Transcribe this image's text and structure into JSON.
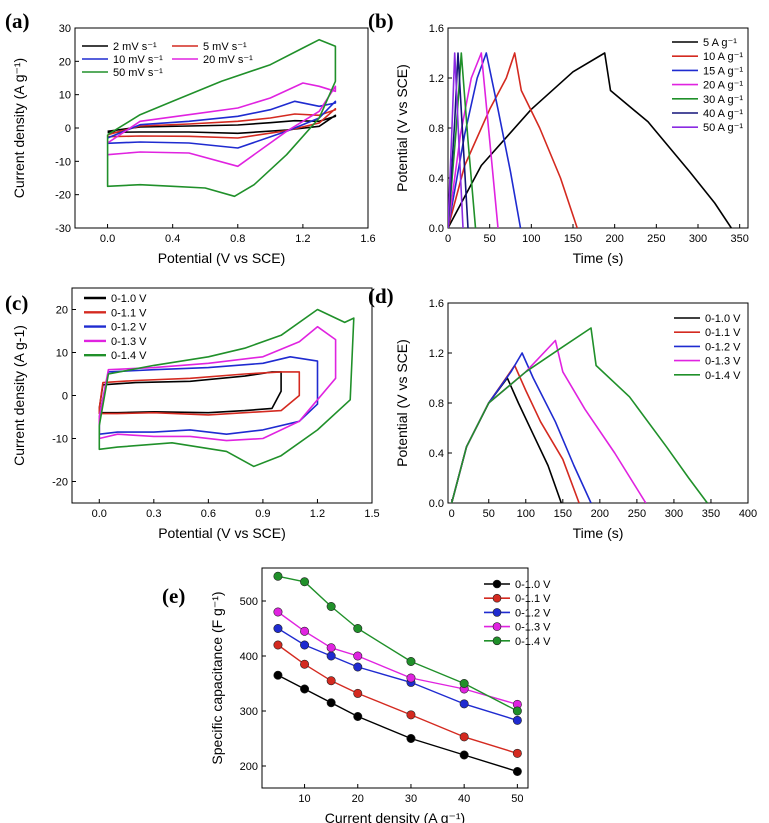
{
  "colors": {
    "black": "#000000",
    "red": "#d42a20",
    "blue": "#1f2bd0",
    "magenta": "#e023e0",
    "green": "#20902a",
    "navy": "#14147a",
    "purple": "#8a2be2"
  },
  "chart_data": [
    {
      "id": "a",
      "panel_label": "(a)",
      "type": "line",
      "xlabel": "Potential (V vs SCE)",
      "ylabel": "Current density (A g⁻¹)",
      "xlim": [
        -0.2,
        1.6
      ],
      "ylim": [
        -30,
        30
      ],
      "xticks": [
        "0.0",
        "0.4",
        "0.8",
        "1.2",
        "1.6"
      ],
      "yticks": [
        "-30",
        "-20",
        "-10",
        "0",
        "10",
        "20",
        "30"
      ],
      "legend": [
        "2 mV s⁻¹",
        "5 mV s⁻¹",
        "10 mV s⁻¹",
        "20 mV s⁻¹",
        "50 mV s⁻¹"
      ],
      "series": [
        {
          "name": "2 mV s⁻¹",
          "color": "black",
          "x": [
            0,
            0.2,
            0.5,
            0.8,
            1.0,
            1.15,
            1.3,
            1.4,
            1.4,
            1.3,
            1.1,
            0.8,
            0.5,
            0.2,
            0
          ],
          "y": [
            -1,
            0.3,
            0.6,
            0.9,
            1.6,
            2.2,
            2,
            3.5,
            3.8,
            0.5,
            -0.6,
            -1.6,
            -1.2,
            -1.2,
            -1.3
          ]
        },
        {
          "name": "5 mV s⁻¹",
          "color": "red",
          "x": [
            0,
            0.2,
            0.5,
            0.8,
            1.0,
            1.15,
            1.3,
            1.4,
            1.4,
            1.3,
            1.1,
            0.8,
            0.5,
            0.2,
            0
          ],
          "y": [
            -2,
            0.6,
            1.2,
            2,
            3,
            4.2,
            3.8,
            5.5,
            5.8,
            1.5,
            -0.8,
            -3,
            -2.5,
            -2.4,
            -2.6
          ]
        },
        {
          "name": "10 mV s⁻¹",
          "color": "blue",
          "x": [
            0,
            0.2,
            0.5,
            0.8,
            1.0,
            1.15,
            1.3,
            1.4,
            1.4,
            1.3,
            1.1,
            0.8,
            0.5,
            0.2,
            0
          ],
          "y": [
            -3,
            1,
            2,
            3.5,
            5.5,
            8,
            6.5,
            7.5,
            8,
            3,
            -1,
            -6,
            -4.5,
            -4.2,
            -4.6
          ]
        },
        {
          "name": "20 mV s⁻¹",
          "color": "magenta",
          "x": [
            0,
            0.2,
            0.5,
            0.8,
            1.0,
            1.2,
            1.3,
            1.4,
            1.4,
            1.3,
            1.1,
            0.8,
            0.5,
            0.2,
            0
          ],
          "y": [
            -4.5,
            2,
            4,
            6,
            9,
            13.5,
            12.5,
            11,
            12.5,
            5,
            -1,
            -11.5,
            -7.5,
            -7.2,
            -8
          ]
        },
        {
          "name": "50 mV s⁻¹",
          "color": "green",
          "x": [
            0,
            0.2,
            0.4,
            0.7,
            1.0,
            1.2,
            1.3,
            1.4,
            1.4,
            1.3,
            1.1,
            0.9,
            0.78,
            0.6,
            0.4,
            0.2,
            0,
            0
          ],
          "y": [
            -2,
            4,
            8,
            14,
            19,
            24,
            26.5,
            24.5,
            14,
            3,
            -8,
            -17,
            -20.5,
            -18,
            -17.5,
            -17,
            -17.5,
            -2
          ]
        }
      ]
    },
    {
      "id": "b",
      "panel_label": "(b)",
      "type": "line",
      "xlabel": "Time (s)",
      "ylabel": "Potential (V vs SCE)",
      "xlim": [
        0,
        360
      ],
      "ylim": [
        0,
        1.6
      ],
      "xticks": [
        "0",
        "50",
        "100",
        "150",
        "200",
        "250",
        "300",
        "350"
      ],
      "yticks": [
        "0.0",
        "0.4",
        "0.8",
        "1.2",
        "1.6"
      ],
      "legend": [
        "5 A g⁻¹",
        "10 A g⁻¹",
        "15 A g⁻¹",
        "20 A g⁻¹",
        "30 A g⁻¹",
        "40 A g⁻¹",
        "50 A g⁻¹"
      ],
      "series": [
        {
          "name": "5 A g⁻¹",
          "color": "black",
          "x": [
            0,
            40,
            100,
            150,
            188,
            195,
            240,
            290,
            320,
            340
          ],
          "y": [
            0,
            0.5,
            0.95,
            1.25,
            1.4,
            1.1,
            0.85,
            0.45,
            0.2,
            0
          ]
        },
        {
          "name": "10 A g⁻¹",
          "color": "red",
          "x": [
            0,
            20,
            50,
            70,
            80,
            88,
            110,
            135,
            155
          ],
          "y": [
            0,
            0.5,
            0.95,
            1.2,
            1.4,
            1.1,
            0.8,
            0.4,
            0
          ]
        },
        {
          "name": "15 A g⁻¹",
          "color": "blue",
          "x": [
            0,
            20,
            35,
            46,
            60,
            75,
            87
          ],
          "y": [
            0,
            0.75,
            1.2,
            1.4,
            0.95,
            0.45,
            0
          ]
        },
        {
          "name": "20 A g⁻¹",
          "color": "magenta",
          "x": [
            0,
            15,
            28,
            40,
            50,
            60
          ],
          "y": [
            0,
            0.75,
            1.2,
            1.4,
            0.7,
            0
          ]
        },
        {
          "name": "30 A g⁻¹",
          "color": "green",
          "x": [
            0,
            10,
            16,
            24,
            33
          ],
          "y": [
            0,
            0.8,
            1.4,
            0.7,
            0
          ]
        },
        {
          "name": "40 A g⁻¹",
          "color": "navy",
          "x": [
            0,
            8,
            12,
            18,
            24
          ],
          "y": [
            0,
            0.85,
            1.4,
            0.7,
            0
          ]
        },
        {
          "name": "50 A g⁻¹",
          "color": "purple",
          "x": [
            0,
            5,
            8,
            13,
            18
          ],
          "y": [
            0,
            0.85,
            1.4,
            0.7,
            0
          ]
        }
      ]
    },
    {
      "id": "c",
      "panel_label": "(c)",
      "type": "line",
      "xlabel": "Potential (V vs SCE)",
      "ylabel": "Current density (A g-1)",
      "xlim": [
        -0.15,
        1.5
      ],
      "ylim": [
        -25,
        25
      ],
      "xticks": [
        "0.0",
        "0.3",
        "0.6",
        "0.9",
        "1.2",
        "1.5"
      ],
      "yticks": [
        "-20",
        "-10",
        "0",
        "10",
        "20"
      ],
      "legend": [
        "0-1.0 V",
        "0-1.1 V",
        "0-1.2 V",
        "0-1.3 V",
        "0-1.4 V"
      ],
      "series": [
        {
          "name": "0-1.0 V",
          "color": "black",
          "x": [
            0,
            0.02,
            0.2,
            0.5,
            0.8,
            0.95,
            1.0,
            1.0,
            0.95,
            0.8,
            0.6,
            0.3,
            0.1,
            0,
            0
          ],
          "y": [
            -3,
            2.5,
            3,
            3.3,
            4.5,
            5.5,
            5.5,
            1,
            -3,
            -3.5,
            -4,
            -3.8,
            -4,
            -4,
            -3
          ]
        },
        {
          "name": "0-1.1 V",
          "color": "red",
          "x": [
            0,
            0.02,
            0.2,
            0.5,
            0.8,
            1.0,
            1.1,
            1.1,
            1.0,
            0.8,
            0.6,
            0.3,
            0.1,
            0,
            0
          ],
          "y": [
            -3,
            3,
            3.5,
            4,
            5,
            5.5,
            5.5,
            0,
            -3.5,
            -4,
            -4.5,
            -4,
            -4.2,
            -4.2,
            -3
          ]
        },
        {
          "name": "0-1.2 V",
          "color": "blue",
          "x": [
            0,
            0.05,
            0.3,
            0.6,
            0.9,
            1.05,
            1.2,
            1.2,
            1.1,
            0.9,
            0.7,
            0.5,
            0.3,
            0.1,
            0,
            0
          ],
          "y": [
            -5,
            5.5,
            6,
            6.5,
            7.5,
            9,
            8,
            -2,
            -6,
            -8,
            -9,
            -8,
            -8.5,
            -8.5,
            -9,
            -5
          ]
        },
        {
          "name": "0-1.3 V",
          "color": "magenta",
          "x": [
            0,
            0.05,
            0.3,
            0.6,
            0.9,
            1.1,
            1.2,
            1.3,
            1.3,
            1.1,
            0.9,
            0.7,
            0.5,
            0.3,
            0.1,
            0,
            0
          ],
          "y": [
            -5,
            6,
            6.5,
            7.5,
            9,
            12.5,
            16,
            13,
            4,
            -6,
            -10,
            -10.5,
            -9.5,
            -9.5,
            -9,
            -10,
            -5
          ]
        },
        {
          "name": "0-1.4 V",
          "color": "green",
          "x": [
            0,
            0.05,
            0.3,
            0.6,
            0.8,
            1.0,
            1.2,
            1.35,
            1.4,
            1.38,
            1.2,
            1.0,
            0.85,
            0.7,
            0.4,
            0.1,
            0,
            0
          ],
          "y": [
            -7,
            5,
            7,
            9,
            11,
            14,
            20,
            17,
            18,
            -1,
            -8,
            -14,
            -16.5,
            -13,
            -11,
            -12,
            -12.5,
            -7
          ]
        }
      ]
    },
    {
      "id": "d",
      "panel_label": "(d)",
      "type": "line",
      "xlabel": "Time (s)",
      "ylabel": "Potential (V vs SCE)",
      "xlim": [
        -5,
        400
      ],
      "ylim": [
        0,
        1.6
      ],
      "xticks": [
        "0",
        "50",
        "100",
        "150",
        "200",
        "250",
        "300",
        "350",
        "400"
      ],
      "yticks": [
        "0.0",
        "0.4",
        "0.8",
        "1.2",
        "1.6"
      ],
      "legend": [
        "0-1.0 V",
        "0-1.1 V",
        "0-1.2 V",
        "0-1.3 V",
        "0-1.4 V"
      ],
      "series": [
        {
          "name": "0-1.0 V",
          "color": "black",
          "x": [
            0,
            20,
            50,
            75,
            90,
            110,
            130,
            148
          ],
          "y": [
            0,
            0.45,
            0.8,
            1.0,
            0.8,
            0.55,
            0.3,
            0
          ]
        },
        {
          "name": "0-1.1 V",
          "color": "red",
          "x": [
            0,
            20,
            50,
            85,
            100,
            120,
            150,
            172
          ],
          "y": [
            0,
            0.45,
            0.8,
            1.1,
            0.9,
            0.65,
            0.35,
            0
          ]
        },
        {
          "name": "0-1.2 V",
          "color": "blue",
          "x": [
            0,
            20,
            50,
            80,
            95,
            110,
            140,
            165,
            188
          ],
          "y": [
            0,
            0.45,
            0.8,
            1.05,
            1.2,
            1.0,
            0.65,
            0.3,
            0
          ]
        },
        {
          "name": "0-1.3 V",
          "color": "magenta",
          "x": [
            0,
            20,
            50,
            100,
            140,
            150,
            180,
            220,
            262
          ],
          "y": [
            0,
            0.45,
            0.8,
            1.05,
            1.3,
            1.05,
            0.75,
            0.4,
            0
          ]
        },
        {
          "name": "0-1.4 V",
          "color": "green",
          "x": [
            0,
            20,
            50,
            100,
            150,
            188,
            195,
            240,
            290,
            320,
            345
          ],
          "y": [
            0,
            0.45,
            0.8,
            1.05,
            1.25,
            1.4,
            1.1,
            0.85,
            0.45,
            0.2,
            0
          ]
        }
      ]
    },
    {
      "id": "e",
      "panel_label": "(e)",
      "type": "line",
      "xlabel": "Current density (A g⁻¹)",
      "ylabel": "Specific capacitance (F g⁻¹)",
      "xlim": [
        2,
        52
      ],
      "ylim": [
        160,
        560
      ],
      "xticks": [
        "10",
        "20",
        "30",
        "40",
        "50"
      ],
      "yticks": [
        "200",
        "300",
        "400",
        "500"
      ],
      "legend": [
        "0-1.0 V",
        "0-1.1 V",
        "0-1.2 V",
        "0-1.3 V",
        "0-1.4 V"
      ],
      "series": [
        {
          "name": "0-1.0 V",
          "color": "black",
          "x": [
            5,
            10,
            15,
            20,
            30,
            40,
            50
          ],
          "y": [
            365,
            340,
            315,
            290,
            250,
            220,
            190
          ]
        },
        {
          "name": "0-1.1 V",
          "color": "red",
          "x": [
            5,
            10,
            15,
            20,
            30,
            40,
            50
          ],
          "y": [
            420,
            385,
            355,
            332,
            293,
            253,
            223
          ]
        },
        {
          "name": "0-1.2 V",
          "color": "blue",
          "x": [
            5,
            10,
            15,
            20,
            30,
            40,
            50
          ],
          "y": [
            450,
            420,
            400,
            380,
            352,
            313,
            283
          ]
        },
        {
          "name": "0-1.3 V",
          "color": "magenta",
          "x": [
            5,
            10,
            15,
            20,
            30,
            40,
            50
          ],
          "y": [
            480,
            445,
            415,
            400,
            360,
            340,
            312
          ]
        },
        {
          "name": "0-1.4 V",
          "color": "green",
          "x": [
            5,
            10,
            15,
            20,
            30,
            40,
            50
          ],
          "y": [
            545,
            535,
            490,
            450,
            390,
            350,
            300
          ]
        }
      ]
    }
  ]
}
